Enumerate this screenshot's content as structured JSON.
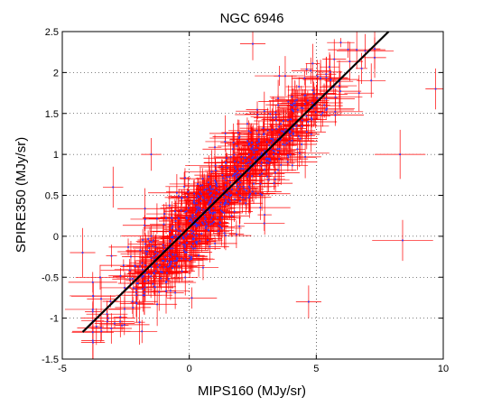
{
  "chart_data": {
    "type": "scatter",
    "title": "NGC 6946",
    "xlabel": "MIPS160 (MJy/sr)",
    "ylabel": "SPIRE350 (MJy/sr)",
    "xlim": [
      -5,
      10
    ],
    "ylim": [
      -1.5,
      2.5
    ],
    "xticks": [
      "-5",
      "0",
      "5",
      "10"
    ],
    "yticks": [
      "-1.5",
      "-1",
      "-0.5",
      "0",
      "0.5",
      "1",
      "1.5",
      "2",
      "2.5"
    ],
    "grid": true,
    "legend": "none",
    "fit_line": {
      "x": [
        -4.2,
        7.85
      ],
      "y": [
        -1.17,
        2.5
      ]
    },
    "cloud": {
      "count": 700,
      "x_center": 1.2,
      "x_spread": 2.3,
      "x_min": -3.8,
      "x_max": 7.3,
      "slope": 0.305,
      "intercept": 0.1,
      "y_scatter": 0.27,
      "xerr_range": [
        0.2,
        1.2
      ],
      "yerr_range": [
        0.05,
        0.28
      ]
    },
    "outliers": [
      {
        "x": 8.4,
        "y": -0.05,
        "xerr": 1.2,
        "yerr": 0.25
      },
      {
        "x": 8.3,
        "y": 1.0,
        "xerr": 1.0,
        "yerr": 0.3
      },
      {
        "x": 9.7,
        "y": 1.8,
        "xerr": 0.4,
        "yerr": 0.25
      },
      {
        "x": -3.0,
        "y": 0.6,
        "xerr": 0.4,
        "yerr": 0.25
      },
      {
        "x": -4.2,
        "y": -0.2,
        "xerr": 0.5,
        "yerr": 0.3
      },
      {
        "x": 4.7,
        "y": -0.8,
        "xerr": 0.5,
        "yerr": 0.2
      },
      {
        "x": 2.5,
        "y": 2.35,
        "xerr": 0.5,
        "yerr": 0.2
      },
      {
        "x": -1.5,
        "y": 1.0,
        "xerr": 0.4,
        "yerr": 0.2
      }
    ],
    "colors": {
      "errorbar": "#ff0000",
      "point": "#3333ff",
      "fit_line": "#000000",
      "grid": "#000000"
    }
  }
}
